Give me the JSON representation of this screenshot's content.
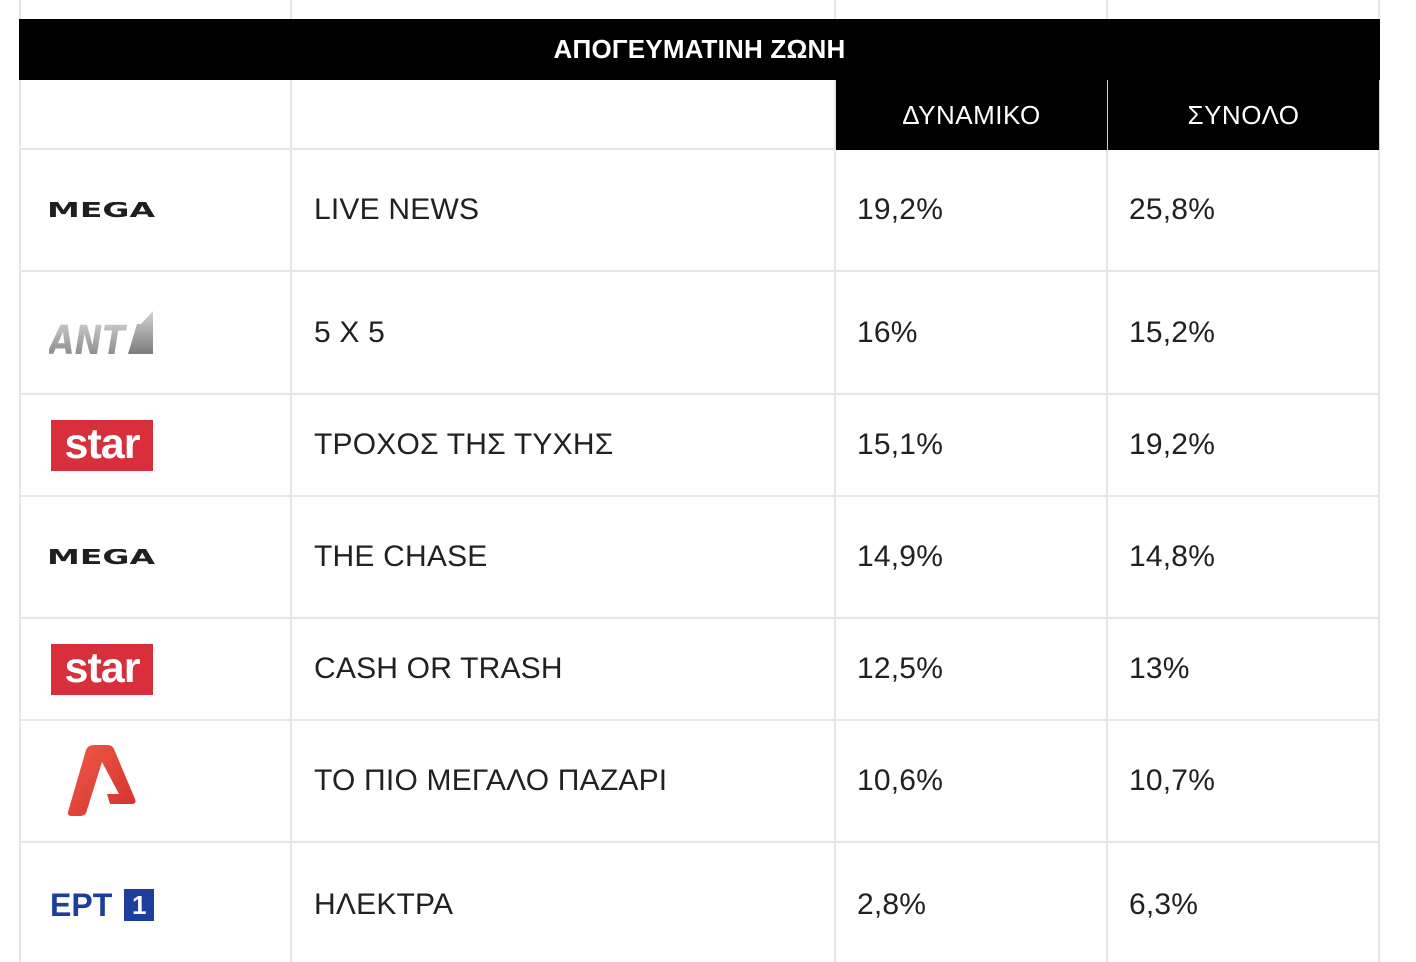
{
  "section_title": "ΑΠΟΓΕΥΜΑΤΙΝΗ ΖΩΝΗ",
  "headers": {
    "dynamiko": "ΔΥΝΑΜΙΚΟ",
    "synolo": "ΣΥΝΟΛΟ"
  },
  "rows": [
    {
      "logo": {
        "icon": "mega-logo",
        "text": "MEGA"
      },
      "show": "LIVE NEWS",
      "dynamiko": "19,2%",
      "synolo": "25,8%"
    },
    {
      "logo": {
        "icon": "ant1-logo",
        "text": "ANT"
      },
      "show": "5 X 5",
      "dynamiko": "16%",
      "synolo": "15,2%"
    },
    {
      "logo": {
        "icon": "star-logo",
        "text": "star"
      },
      "show": "ΤΡΟΧΟΣ ΤΗΣ ΤΥΧΗΣ",
      "dynamiko": "15,1%",
      "synolo": "19,2%"
    },
    {
      "logo": {
        "icon": "mega-logo",
        "text": "MEGA"
      },
      "show": "THE CHASE",
      "dynamiko": "14,9%",
      "synolo": "14,8%"
    },
    {
      "logo": {
        "icon": "star-logo",
        "text": "star"
      },
      "show": "CASH OR TRASH",
      "dynamiko": "12,5%",
      "synolo": "13%"
    },
    {
      "logo": {
        "icon": "alpha-logo"
      },
      "show": "ΤΟ ΠΙΟ ΜΕΓΑΛΟ ΠΑΖΑΡΙ",
      "dynamiko": "10,6%",
      "synolo": "10,7%"
    },
    {
      "logo": {
        "icon": "ert1-logo",
        "text": "ΕΡΤ",
        "badge": "1"
      },
      "show": "ΗΛΕΚΤΡΑ",
      "dynamiko": "2,8%",
      "synolo": "6,3%"
    }
  ],
  "colors": {
    "header_bg": "#000000",
    "header_text": "#ffffff",
    "text": "#212121",
    "border": "#e6e6e6",
    "star_red": "#d72f3c",
    "alpha_red": "#e3423c",
    "ert_blue": "#1d3e9b",
    "ant_gray": "#a8a8a8"
  }
}
